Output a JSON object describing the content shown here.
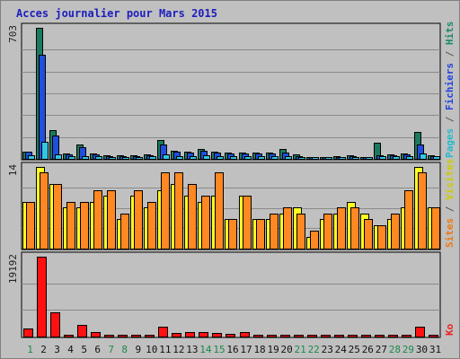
{
  "chart_data": {
    "type": "bar",
    "title": "Acces journalier pour Mars 2015",
    "days": [
      "1",
      "2",
      "3",
      "4",
      "5",
      "6",
      "7",
      "8",
      "9",
      "10",
      "11",
      "12",
      "13",
      "14",
      "15",
      "16",
      "17",
      "18",
      "19",
      "20",
      "21",
      "22",
      "23",
      "24",
      "25",
      "26",
      "27",
      "28",
      "29",
      "30",
      "31"
    ],
    "weekend_days": [
      "1",
      "7",
      "8",
      "14",
      "15",
      "21",
      "22",
      "28",
      "29"
    ],
    "panels": [
      {
        "id": "traffic",
        "ymax_label": "703",
        "ymax": 703,
        "right_label": [
          {
            "text": "Pages",
            "color": "#22bbcc"
          },
          {
            "text": " / ",
            "color": "#555555"
          },
          {
            "text": "Fichiers",
            "color": "#2244dd"
          },
          {
            "text": " / ",
            "color": "#555555"
          },
          {
            "text": "Hits",
            "color": "#1a8a6a"
          }
        ],
        "series": [
          {
            "name": "Hits",
            "color": "#1a7a60",
            "values": [
              40,
              703,
              155,
              30,
              75,
              28,
              18,
              18,
              18,
              22,
              100,
              45,
              40,
              55,
              40,
              35,
              35,
              35,
              35,
              55,
              22,
              12,
              12,
              14,
              18,
              12,
              85,
              22,
              28,
              145,
              18
            ]
          },
          {
            "name": "Fichiers",
            "color": "#1f4fdc",
            "values": [
              38,
              560,
              125,
              24,
              65,
              22,
              14,
              14,
              14,
              18,
              75,
              38,
              32,
              45,
              34,
              30,
              30,
              28,
              28,
              35,
              16,
              10,
              10,
              12,
              14,
              10,
              18,
              18,
              22,
              75,
              16
            ]
          },
          {
            "name": "Pages",
            "color": "#33c6e0",
            "values": [
              18,
              92,
              26,
              14,
              16,
              14,
              12,
              12,
              12,
              16,
              26,
              16,
              16,
              18,
              16,
              14,
              14,
              14,
              14,
              16,
              12,
              10,
              10,
              10,
              12,
              10,
              14,
              14,
              16,
              28,
              14
            ]
          }
        ]
      },
      {
        "id": "visits",
        "ymax_label": "14",
        "ymax": 14,
        "right_label": [
          {
            "text": "Sites",
            "color": "#ee7711"
          },
          {
            "text": " / ",
            "color": "#555555"
          },
          {
            "text": "Visites",
            "color": "#cccc00"
          }
        ],
        "series": [
          {
            "name": "Visites",
            "color": "#ffff22",
            "values": [
              8,
              14,
              11,
              7,
              7,
              8,
              9,
              5,
              9,
              7,
              10,
              11,
              9,
              8,
              9,
              5,
              9,
              5,
              5,
              6,
              7,
              2,
              5,
              6,
              8,
              6,
              4,
              5,
              7,
              14,
              7
            ]
          },
          {
            "name": "Sites",
            "color": "#ff8822",
            "values": [
              8,
              13,
              11,
              8,
              8,
              10,
              10,
              6,
              10,
              8,
              13,
              13,
              11,
              9,
              13,
              5,
              9,
              5,
              6,
              7,
              6,
              3,
              6,
              7,
              7,
              5,
              4,
              6,
              10,
              13,
              7
            ]
          }
        ]
      },
      {
        "id": "kbytes",
        "ymax_label": "19192",
        "ymax": 19192,
        "right_label": [
          {
            "text": "Ko",
            "color": "#ee2222"
          }
        ],
        "series": [
          {
            "name": "Ko",
            "color": "#ff1111",
            "values": [
              1900,
              19192,
              5800,
              400,
              2900,
              1000,
              150,
              150,
              150,
              150,
              2300,
              900,
              1000,
              1000,
              800,
              700,
              1000,
              200,
              200,
              200,
              200,
              200,
              150,
              150,
              150,
              150,
              150,
              150,
              400,
              2400,
              150
            ]
          }
        ]
      }
    ]
  }
}
